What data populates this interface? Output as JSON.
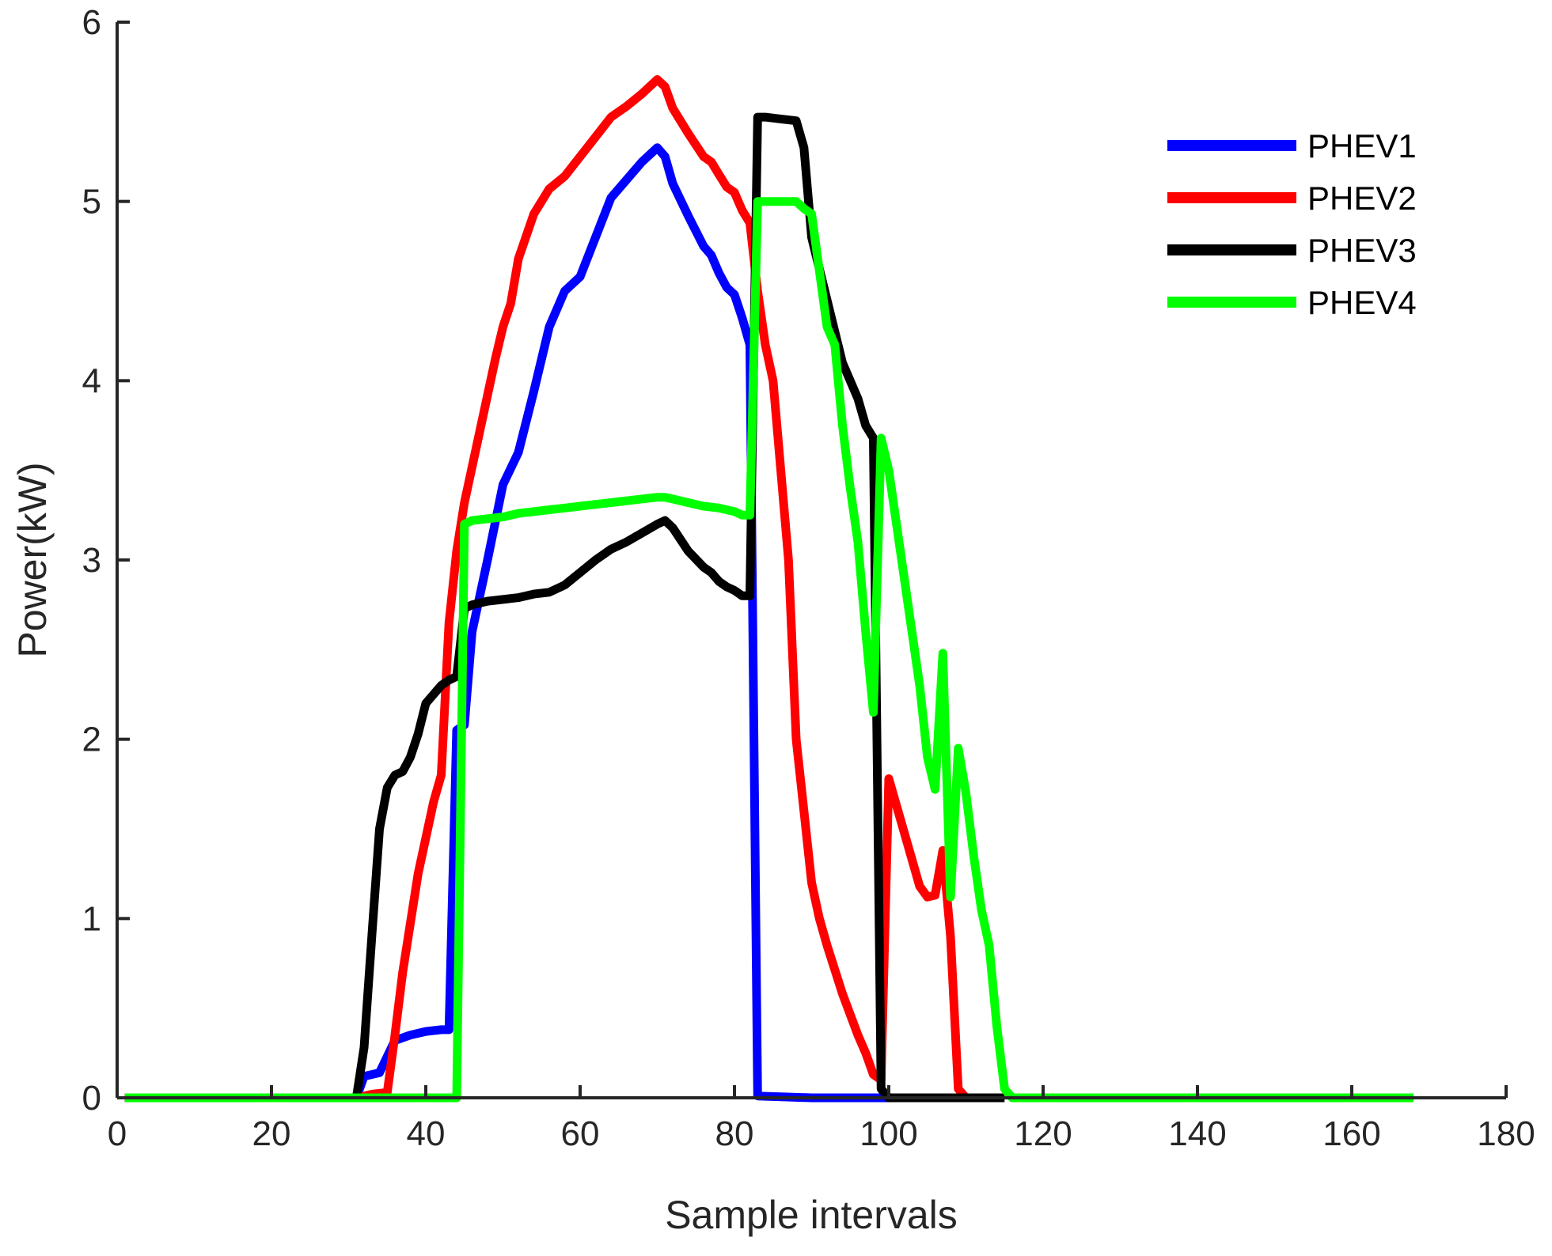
{
  "chart_data": {
    "type": "line",
    "title": "",
    "xlabel": "Sample intervals",
    "ylabel": "Power(kW)",
    "xlim": [
      0,
      180
    ],
    "ylim": [
      0,
      6
    ],
    "xticks": [
      0,
      20,
      40,
      60,
      80,
      100,
      120,
      140,
      160,
      180
    ],
    "yticks": [
      0,
      1,
      2,
      3,
      4,
      5,
      6
    ],
    "grid": false,
    "legend_position": "top-right",
    "series": [
      {
        "name": "PHEV1",
        "color": "#0000ff",
        "x": [
          1,
          31,
          32,
          34,
          36,
          38,
          40,
          42,
          43,
          44,
          45,
          46,
          48,
          50,
          52,
          54,
          56,
          58,
          60,
          62,
          64,
          66,
          68,
          70,
          71,
          72,
          74,
          76,
          77,
          78,
          79,
          80,
          81,
          82,
          83,
          90,
          98,
          100
        ],
        "y": [
          0,
          0,
          0.12,
          0.14,
          0.32,
          0.35,
          0.37,
          0.38,
          0.38,
          2.05,
          2.08,
          2.6,
          3.0,
          3.42,
          3.6,
          3.94,
          4.3,
          4.5,
          4.58,
          4.8,
          5.02,
          5.12,
          5.22,
          5.3,
          5.25,
          5.1,
          4.92,
          4.75,
          4.7,
          4.6,
          4.52,
          4.48,
          4.35,
          4.2,
          0.01,
          0,
          0,
          0
        ]
      },
      {
        "name": "PHEV2",
        "color": "#ff0000",
        "x": [
          1,
          31,
          33,
          35,
          36,
          37,
          39,
          41,
          42,
          43,
          44,
          45,
          47,
          49,
          50,
          51,
          52,
          54,
          56,
          58,
          60,
          62,
          64,
          66,
          68,
          70,
          71,
          72,
          74,
          76,
          77,
          78,
          79,
          80,
          81,
          82,
          83,
          84,
          85,
          87,
          88,
          89,
          90,
          91,
          92,
          94,
          96,
          97,
          98,
          99,
          100,
          102,
          104,
          105,
          106,
          107,
          108,
          109,
          110
        ],
        "y": [
          0,
          0,
          0.02,
          0.03,
          0.35,
          0.7,
          1.25,
          1.65,
          1.8,
          2.65,
          3.05,
          3.32,
          3.72,
          4.12,
          4.3,
          4.43,
          4.68,
          4.93,
          5.07,
          5.14,
          5.25,
          5.36,
          5.47,
          5.53,
          5.6,
          5.68,
          5.64,
          5.52,
          5.38,
          5.25,
          5.22,
          5.15,
          5.08,
          5.05,
          4.95,
          4.88,
          4.5,
          4.2,
          4.0,
          3.0,
          2.0,
          1.6,
          1.2,
          1.0,
          0.85,
          0.58,
          0.35,
          0.25,
          0.13,
          0.1,
          1.78,
          1.48,
          1.18,
          1.12,
          1.13,
          1.38,
          0.9,
          0.05,
          0
        ]
      },
      {
        "name": "PHEV3",
        "color": "#000000",
        "x": [
          1,
          31,
          32,
          33,
          34,
          35,
          36,
          37,
          38,
          39,
          40,
          42,
          43,
          44,
          45,
          46,
          48,
          50,
          52,
          54,
          56,
          58,
          60,
          62,
          64,
          66,
          68,
          70,
          71,
          72,
          74,
          76,
          77,
          78,
          79,
          80,
          81,
          82,
          83,
          84,
          86,
          88,
          89,
          90,
          92,
          94,
          96,
          97,
          98,
          99,
          100,
          105,
          110,
          115
        ],
        "y": [
          0,
          0,
          0.28,
          0.9,
          1.5,
          1.73,
          1.8,
          1.82,
          1.9,
          2.03,
          2.2,
          2.3,
          2.33,
          2.35,
          2.73,
          2.75,
          2.77,
          2.78,
          2.79,
          2.81,
          2.82,
          2.86,
          2.93,
          3.0,
          3.06,
          3.1,
          3.15,
          3.2,
          3.22,
          3.18,
          3.05,
          2.96,
          2.93,
          2.88,
          2.85,
          2.83,
          2.8,
          2.8,
          5.47,
          5.47,
          5.46,
          5.45,
          5.3,
          4.8,
          4.45,
          4.1,
          3.9,
          3.75,
          3.68,
          0.05,
          0,
          0,
          0,
          0
        ]
      },
      {
        "name": "PHEV4",
        "color": "#00ff00",
        "x": [
          1,
          44,
          45,
          46,
          48,
          50,
          52,
          54,
          56,
          58,
          60,
          62,
          64,
          66,
          68,
          70,
          71,
          72,
          74,
          76,
          78,
          80,
          81,
          82,
          83,
          84,
          86,
          88,
          89,
          90,
          92,
          93,
          94,
          95,
          96,
          97,
          98,
          99,
          100,
          102,
          104,
          105,
          106,
          107,
          108,
          109,
          110,
          111,
          112,
          113,
          114,
          115,
          116,
          118,
          120,
          130,
          150,
          168
        ],
        "y": [
          0,
          0,
          3.2,
          3.22,
          3.23,
          3.24,
          3.26,
          3.27,
          3.28,
          3.29,
          3.3,
          3.31,
          3.32,
          3.33,
          3.34,
          3.35,
          3.35,
          3.34,
          3.32,
          3.3,
          3.29,
          3.27,
          3.25,
          3.25,
          5.0,
          5.0,
          5.0,
          5.0,
          4.96,
          4.93,
          4.3,
          4.2,
          3.75,
          3.4,
          3.1,
          2.6,
          2.15,
          3.68,
          3.5,
          2.9,
          2.3,
          1.9,
          1.72,
          2.48,
          1.12,
          1.95,
          1.7,
          1.35,
          1.05,
          0.85,
          0.4,
          0.05,
          0,
          0,
          0,
          0,
          0,
          0
        ]
      }
    ]
  }
}
